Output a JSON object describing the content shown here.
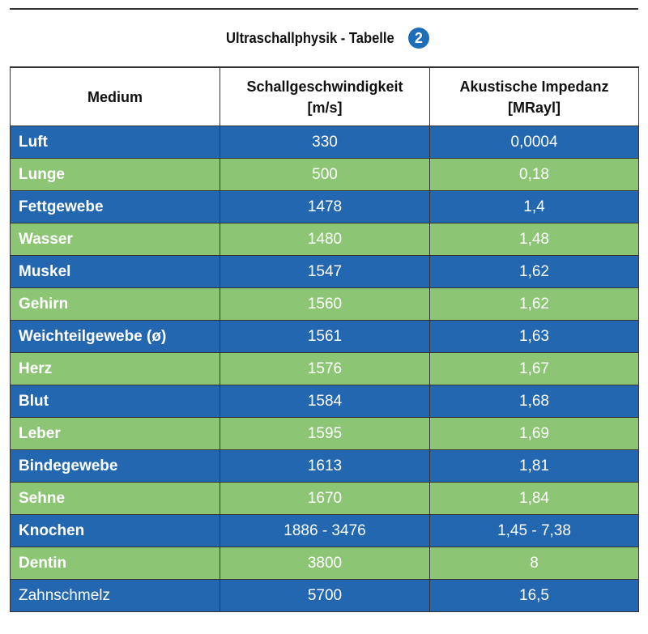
{
  "title": "Ultraschallphysik - Tabelle",
  "badge": "2",
  "headers": {
    "medium": "Medium",
    "speed_line1": "Schallgeschwindigkeit",
    "speed_line2": "[m/s]",
    "impedance_line1": "Akustische Impedanz",
    "impedance_line2": "[MRayl]"
  },
  "colors": {
    "blue": "#2367b0",
    "green": "#8cc574",
    "badge": "#1e6fb8"
  },
  "rows": [
    {
      "medium": "Luft",
      "speed": "330",
      "impedance": "0,0004"
    },
    {
      "medium": "Lunge",
      "speed": "500",
      "impedance": "0,18"
    },
    {
      "medium": "Fettgewebe",
      "speed": "1478",
      "impedance": "1,4"
    },
    {
      "medium": "Wasser",
      "speed": "1480",
      "impedance": "1,48"
    },
    {
      "medium": "Muskel",
      "speed": "1547",
      "impedance": "1,62"
    },
    {
      "medium": "Gehirn",
      "speed": "1560",
      "impedance": "1,62"
    },
    {
      "medium": "Weichteilgewebe (ø)",
      "speed": "1561",
      "impedance": "1,63"
    },
    {
      "medium": "Herz",
      "speed": "1576",
      "impedance": "1,67"
    },
    {
      "medium": "Blut",
      "speed": "1584",
      "impedance": "1,68"
    },
    {
      "medium": "Leber",
      "speed": "1595",
      "impedance": "1,69"
    },
    {
      "medium": "Bindegewebe",
      "speed": "1613",
      "impedance": "1,81"
    },
    {
      "medium": "Sehne",
      "speed": "1670",
      "impedance": "1,84"
    },
    {
      "medium": "Knochen",
      "speed": "1886 - 3476",
      "impedance": "1,45 - 7,38"
    },
    {
      "medium": "Dentin",
      "speed": "3800",
      "impedance": "8"
    },
    {
      "medium": "Zahnschmelz",
      "speed": "5700",
      "impedance": "16,5"
    }
  ]
}
